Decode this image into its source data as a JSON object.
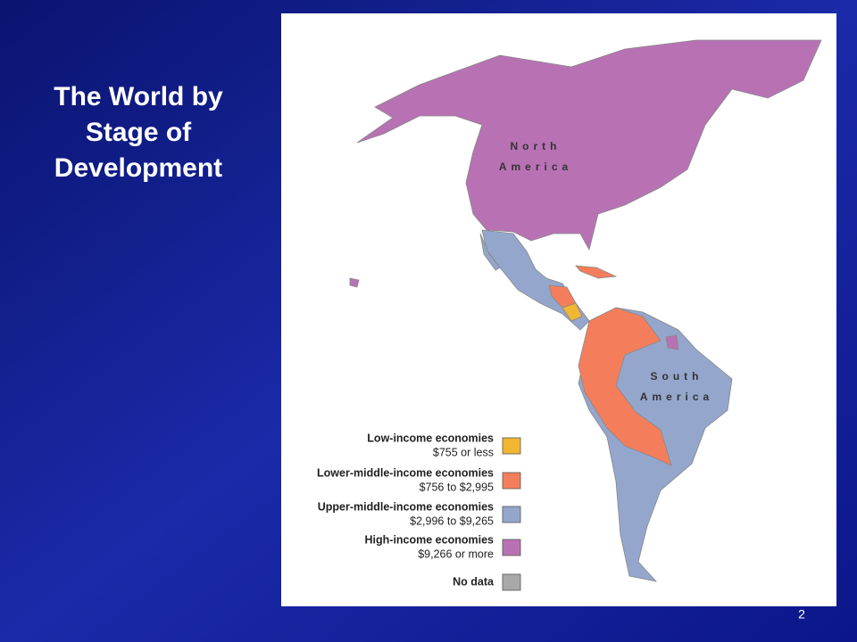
{
  "title_lines": [
    "The World by",
    "Stage of",
    "Development"
  ],
  "map_labels": [
    {
      "lines": [
        "North",
        "America"
      ]
    },
    {
      "lines": [
        "South",
        "America"
      ]
    }
  ],
  "legend": [
    {
      "name": "Low-income economies",
      "range": "$755 or less",
      "color": "#f2b632"
    },
    {
      "name": "Lower-middle-income economies",
      "range": "$756 to $2,995",
      "color": "#f47e5b"
    },
    {
      "name": "Upper-middle-income economies",
      "range": "$2,996 to $9,265",
      "color": "#94a6cc"
    },
    {
      "name": "High-income economies",
      "range": "$9,266 or more",
      "color": "#b872b4"
    },
    {
      "name": "No data",
      "color": "#a9a9a9"
    }
  ],
  "slide_number": 2
}
